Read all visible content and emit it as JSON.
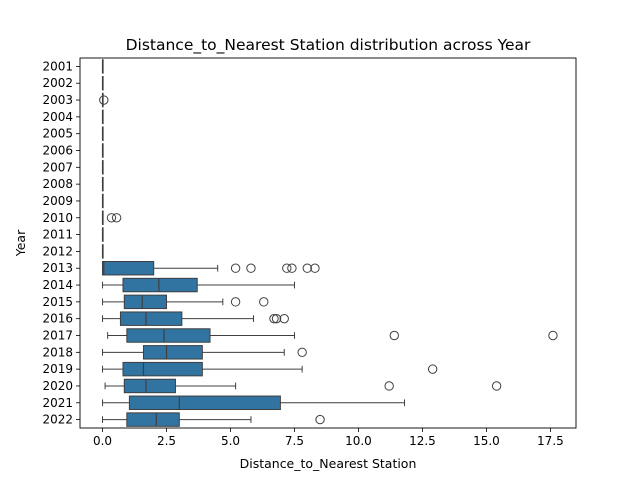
{
  "chart_data": {
    "type": "boxplot",
    "orientation": "horizontal",
    "title": "Distance_to_Nearest Station distribution across Year",
    "xlabel": "Distance_to_Nearest Station",
    "ylabel": "Year",
    "xlim": [
      -0.88,
      18.5
    ],
    "xticks": [
      0.0,
      2.5,
      5.0,
      7.5,
      10.0,
      12.5,
      15.0,
      17.5
    ],
    "xtick_labels": [
      "0.0",
      "2.5",
      "5.0",
      "7.5",
      "10.0",
      "12.5",
      "15.0",
      "17.5"
    ],
    "grid": false,
    "box_color": "#3274a1",
    "line_color": "#3f3f3f",
    "categories": [
      "2001",
      "2002",
      "2003",
      "2004",
      "2005",
      "2006",
      "2007",
      "2008",
      "2009",
      "2010",
      "2011",
      "2012",
      "2013",
      "2014",
      "2015",
      "2016",
      "2017",
      "2018",
      "2019",
      "2020",
      "2021",
      "2022"
    ],
    "boxes": [
      {
        "year": "2001",
        "whislo": 0.0,
        "q1": 0.0,
        "med": 0.0,
        "q3": 0.0,
        "whishi": 0.0,
        "fliers": []
      },
      {
        "year": "2002",
        "whislo": 0.0,
        "q1": 0.0,
        "med": 0.0,
        "q3": 0.0,
        "whishi": 0.0,
        "fliers": []
      },
      {
        "year": "2003",
        "whislo": 0.0,
        "q1": 0.0,
        "med": 0.0,
        "q3": 0.0,
        "whishi": 0.0,
        "fliers": [
          0.05
        ]
      },
      {
        "year": "2004",
        "whislo": 0.0,
        "q1": 0.0,
        "med": 0.0,
        "q3": 0.0,
        "whishi": 0.0,
        "fliers": []
      },
      {
        "year": "2005",
        "whislo": 0.0,
        "q1": 0.0,
        "med": 0.0,
        "q3": 0.0,
        "whishi": 0.0,
        "fliers": []
      },
      {
        "year": "2006",
        "whislo": 0.0,
        "q1": 0.0,
        "med": 0.0,
        "q3": 0.0,
        "whishi": 0.0,
        "fliers": []
      },
      {
        "year": "2007",
        "whislo": 0.0,
        "q1": 0.0,
        "med": 0.0,
        "q3": 0.0,
        "whishi": 0.0,
        "fliers": []
      },
      {
        "year": "2008",
        "whislo": 0.0,
        "q1": 0.0,
        "med": 0.0,
        "q3": 0.0,
        "whishi": 0.0,
        "fliers": []
      },
      {
        "year": "2009",
        "whislo": 0.0,
        "q1": 0.0,
        "med": 0.0,
        "q3": 0.0,
        "whishi": 0.0,
        "fliers": []
      },
      {
        "year": "2010",
        "whislo": 0.0,
        "q1": 0.0,
        "med": 0.0,
        "q3": 0.0,
        "whishi": 0.0,
        "fliers": [
          0.35,
          0.55
        ]
      },
      {
        "year": "2011",
        "whislo": 0.0,
        "q1": 0.0,
        "med": 0.0,
        "q3": 0.0,
        "whishi": 0.0,
        "fliers": []
      },
      {
        "year": "2012",
        "whislo": 0.0,
        "q1": 0.0,
        "med": 0.0,
        "q3": 0.0,
        "whishi": 0.0,
        "fliers": []
      },
      {
        "year": "2013",
        "whislo": 0.0,
        "q1": 0.0,
        "med": 0.05,
        "q3": 2.0,
        "whishi": 4.5,
        "fliers": [
          5.2,
          5.8,
          7.2,
          7.4,
          8.0,
          8.3
        ]
      },
      {
        "year": "2014",
        "whislo": 0.0,
        "q1": 0.8,
        "med": 2.2,
        "q3": 3.7,
        "whishi": 7.5,
        "fliers": []
      },
      {
        "year": "2015",
        "whislo": 0.0,
        "q1": 0.85,
        "med": 1.55,
        "q3": 2.5,
        "whishi": 4.7,
        "fliers": [
          5.2,
          6.3
        ]
      },
      {
        "year": "2016",
        "whislo": 0.0,
        "q1": 0.7,
        "med": 1.7,
        "q3": 3.1,
        "whishi": 5.9,
        "fliers": [
          6.7,
          6.8,
          7.1
        ]
      },
      {
        "year": "2017",
        "whislo": 0.2,
        "q1": 0.95,
        "med": 2.4,
        "q3": 4.2,
        "whishi": 7.5,
        "fliers": [
          11.4,
          17.6
        ]
      },
      {
        "year": "2018",
        "whislo": 0.0,
        "q1": 1.6,
        "med": 2.5,
        "q3": 3.9,
        "whishi": 7.1,
        "fliers": [
          7.8
        ]
      },
      {
        "year": "2019",
        "whislo": 0.0,
        "q1": 0.8,
        "med": 1.6,
        "q3": 3.9,
        "whishi": 7.8,
        "fliers": [
          12.9
        ]
      },
      {
        "year": "2020",
        "whislo": 0.1,
        "q1": 0.85,
        "med": 1.7,
        "q3": 2.85,
        "whishi": 5.2,
        "fliers": [
          11.2,
          15.4
        ]
      },
      {
        "year": "2021",
        "whislo": 0.0,
        "q1": 1.05,
        "med": 3.0,
        "q3": 6.95,
        "whishi": 11.8,
        "fliers": []
      },
      {
        "year": "2022",
        "whislo": 0.0,
        "q1": 0.95,
        "med": 2.1,
        "q3": 3.0,
        "whishi": 5.8,
        "fliers": [
          8.5
        ]
      }
    ]
  }
}
